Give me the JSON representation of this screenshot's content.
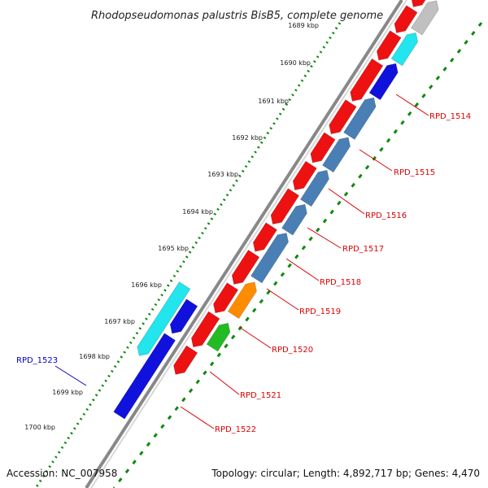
{
  "title": "Rhodopseudomonas palustris BisB5, complete genome",
  "footer": {
    "accession": "Accession: NC_007958",
    "summary": "Topology: circular; Length: 4,892,717 bp; Genes: 4,470"
  },
  "ruler": {
    "ticks": [
      "1689 kbp",
      "1690 kbp",
      "1691 kbp",
      "1692 kbp",
      "1693 kbp",
      "1694 kbp",
      "1695 kbp",
      "1696 kbp",
      "1697 kbp",
      "1698 kbp",
      "1699 kbp",
      "1700 kbp"
    ]
  },
  "gene_labels": [
    {
      "text": "RPD_1514",
      "color": "#dd0000"
    },
    {
      "text": "RPD_1515",
      "color": "#dd0000"
    },
    {
      "text": "RPD_1516",
      "color": "#dd0000"
    },
    {
      "text": "RPD_1517",
      "color": "#dd0000"
    },
    {
      "text": "RPD_1518",
      "color": "#dd0000"
    },
    {
      "text": "RPD_1519",
      "color": "#dd0000"
    },
    {
      "text": "RPD_1520",
      "color": "#dd0000"
    },
    {
      "text": "RPD_1521",
      "color": "#dd0000"
    },
    {
      "text": "RPD_1522",
      "color": "#dd0000"
    },
    {
      "text": "RPD_1523",
      "color": "#0000cc"
    }
  ],
  "colors": {
    "forward": "#ee1111",
    "reverse_light": "#22e5ee",
    "reverse_dark": "#1111dd",
    "steel": "#4a7fb5",
    "gray": "#c0c0c0",
    "orange": "#ff8c00",
    "green": "#22bb22",
    "dots": "#118811",
    "backbone": "#888888"
  }
}
